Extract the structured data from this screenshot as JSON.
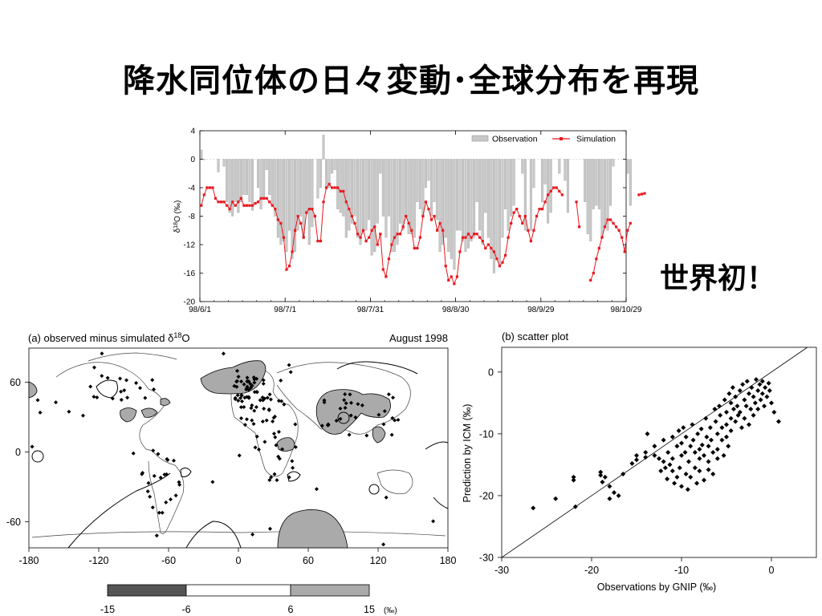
{
  "slide": {
    "title": "降水同位体の日々変動･全球分布を再現",
    "callout": "世界初！"
  },
  "colors": {
    "observation_bar": "#c8c8c8",
    "simulation_line": "#e8181e",
    "positive_shade": "#aaaaaa",
    "negative_shade": "#555555"
  },
  "chart_data": [
    {
      "type": "bar+line",
      "ylabel": "δ18O (‰)",
      "ylabel_base": "δ",
      "ylabel_sup": "18",
      "ylabel_rest": "O (‰)",
      "ylim": [
        -20,
        4
      ],
      "yticks": [
        4,
        0,
        -4,
        -8,
        -12,
        -16,
        -20
      ],
      "xlim_days": [
        0,
        150
      ],
      "xticks": [
        {
          "day": 0,
          "label": "98/6/1"
        },
        {
          "day": 30,
          "label": "98/7/1"
        },
        {
          "day": 60,
          "label": "98/7/31"
        },
        {
          "day": 90,
          "label": "98/8/30"
        },
        {
          "day": 120,
          "label": "98/9/29"
        },
        {
          "day": 150,
          "label": "98/10/29"
        }
      ],
      "legend": {
        "position": "top-right",
        "observation": "Observation",
        "simulation": "Simulation"
      },
      "series": [
        {
          "name": "Observation",
          "kind": "bar",
          "values": [
            1.3,
            0,
            null,
            null,
            null,
            null,
            -1.8,
            null,
            -1,
            -6,
            -7.5,
            -8,
            -6,
            -7.5,
            -6,
            -5,
            -5,
            -6,
            -7.2,
            null,
            -4,
            -7,
            -5.5,
            -1.5,
            -5,
            -6.5,
            -8,
            -11,
            -12,
            -11.5,
            -13,
            -10,
            -14,
            -13,
            -10,
            -8,
            -11,
            -7.5,
            -12,
            -9.5,
            null,
            -5.5,
            -4,
            3.4,
            -4,
            -4,
            -2,
            -1.5,
            -7,
            -7.5,
            -8,
            -11,
            -10,
            -9,
            -8,
            -11,
            -12,
            -10,
            -10,
            -8.5,
            -13.5,
            -13,
            -9,
            -2,
            -8,
            -11,
            -8,
            -13,
            -13,
            -12,
            -9,
            -10,
            -8,
            -10.5,
            -10.5,
            -11,
            -6,
            -7,
            -8,
            -4,
            -3,
            -8,
            -6,
            -8.5,
            -13,
            -12,
            -11,
            -13,
            -14,
            -15.5,
            -10,
            -10,
            -11.5,
            -13,
            -12.5,
            -11.5,
            -11,
            -6,
            -10,
            -12,
            -7.5,
            -11,
            -14,
            -16,
            -14,
            -15,
            -11,
            -7,
            -10,
            -8,
            -6.5,
            null,
            null,
            -2,
            -10,
            null,
            -10,
            -4,
            null,
            null,
            -6,
            -3.5,
            -9,
            -7.5,
            null,
            null,
            -2,
            null,
            -3,
            -7.5,
            null,
            null,
            null,
            null,
            null,
            -6,
            -10.5,
            -11.5,
            -7,
            -6.5,
            -7,
            -11,
            -9.5,
            -10,
            -6.5,
            -1,
            null,
            null,
            null,
            null,
            -2,
            -6.5
          ]
        },
        {
          "name": "Simulation",
          "kind": "line",
          "values": [
            -6.5,
            -5,
            -4,
            -4,
            -4,
            -5.5,
            -6,
            -6,
            -6,
            -6.5,
            -7,
            -6,
            -6.5,
            -6,
            -5.5,
            -6.5,
            -6.5,
            -6.5,
            -6.5,
            -6.2,
            -6,
            -5.5,
            -5.5,
            -5.5,
            -6,
            -6.5,
            -7,
            -8.5,
            -9,
            -11,
            -15.5,
            -15,
            -13,
            -10,
            -8,
            -9,
            -11,
            -7.5,
            -7,
            -7,
            -8,
            -11.5,
            -11.5,
            -6,
            -4,
            -3.5,
            -4,
            -4,
            -4,
            -4.5,
            -4.5,
            -6,
            -7,
            -8,
            -9,
            -10.5,
            -11,
            -10,
            -11.5,
            -11,
            -10,
            -9.5,
            -12,
            -10.5,
            -15.5,
            -16.5,
            -14,
            -12,
            -11,
            -10.5,
            -10.5,
            -9.5,
            -8,
            -9,
            -10,
            -12.5,
            -12.5,
            -11,
            -8,
            -6,
            -7,
            -8.5,
            -8,
            -10,
            -9,
            -10,
            -15,
            -17,
            -16.5,
            -17.5,
            -16.5,
            -13,
            -11,
            -11,
            -10.5,
            -11,
            -10.5,
            -10.5,
            -11,
            -11.5,
            -12.5,
            -12,
            -12.5,
            -13,
            -14,
            -15,
            -14.5,
            -13.5,
            -11,
            -9,
            -7.5,
            -7,
            -8,
            -9,
            -8,
            -10,
            -11.5,
            -10,
            -8,
            -7,
            -7,
            -6,
            -5,
            -4.5,
            -4,
            -4,
            -4.5,
            -5,
            null,
            null,
            null,
            null,
            -6,
            -9.5,
            null,
            null,
            null,
            -17,
            -16,
            -14,
            -12.5,
            -11,
            -9.5,
            -8.5,
            -8.5,
            -9,
            -9.5,
            -10,
            -11,
            -13,
            -10,
            -9,
            null,
            null,
            -5,
            -4.9,
            -4.8
          ]
        }
      ]
    },
    {
      "type": "map",
      "title": "(a) observed minus simulated δ18O",
      "title_base": "(a) observed minus simulated δ",
      "title_sup": "18",
      "title_rest": "O",
      "period": "August 1998",
      "xticks": [
        -180,
        -120,
        -60,
        0,
        60,
        120,
        180
      ],
      "yticks": [
        60,
        0,
        -60
      ],
      "colorbar": {
        "ticks": [
          -15,
          -6,
          6,
          15
        ],
        "unit": "(‰)",
        "bins": [
          {
            "from": -15,
            "to": -6,
            "color": "#555555"
          },
          {
            "from": -6,
            "to": 6,
            "color": "#ffffff"
          },
          {
            "from": 6,
            "to": 15,
            "color": "#aaaaaa"
          }
        ]
      }
    },
    {
      "type": "scatter",
      "title": "(b) scatter plot",
      "xlabel": "Observations by GNIP (‰)",
      "ylabel": "Prediction by ICM (‰)",
      "xlim": [
        -30,
        5
      ],
      "ylim": [
        -30,
        4
      ],
      "xticks": [
        -30,
        -20,
        -10,
        0
      ],
      "yticks": [
        0,
        -10,
        -20,
        -30
      ],
      "reference_line": "1:1",
      "points": [
        [
          -26.5,
          -22
        ],
        [
          -24,
          -20.5
        ],
        [
          -22,
          -17
        ],
        [
          -22,
          -17.5
        ],
        [
          -21.8,
          -21.8
        ],
        [
          -19,
          -16.2
        ],
        [
          -19,
          -16.7
        ],
        [
          -18.5,
          -17
        ],
        [
          -18.8,
          -17.8
        ],
        [
          -18,
          -18.5
        ],
        [
          -17.5,
          -19.5
        ],
        [
          -18,
          -20.5
        ],
        [
          -17,
          -20
        ],
        [
          -16.5,
          -16.5
        ],
        [
          -15.5,
          -14.8
        ],
        [
          -15,
          -13.5
        ],
        [
          -15,
          -14.2
        ],
        [
          -14,
          -13
        ],
        [
          -14,
          -13.8
        ],
        [
          -13.8,
          -10
        ],
        [
          -13,
          -12
        ],
        [
          -13,
          -13.5
        ],
        [
          -12.5,
          -14
        ],
        [
          -12.3,
          -16
        ],
        [
          -12,
          -11
        ],
        [
          -12,
          -14.5
        ],
        [
          -11.8,
          -15.5
        ],
        [
          -11.6,
          -17.3
        ],
        [
          -11.5,
          -13
        ],
        [
          -11.3,
          -15
        ],
        [
          -11,
          -10.5
        ],
        [
          -11,
          -14
        ],
        [
          -11,
          -16
        ],
        [
          -10.8,
          -18
        ],
        [
          -10.5,
          -12
        ],
        [
          -10.5,
          -17
        ],
        [
          -10.3,
          -9.5
        ],
        [
          -10.2,
          -15.5
        ],
        [
          -10,
          -11.5
        ],
        [
          -10,
          -13.5
        ],
        [
          -10,
          -18.5
        ],
        [
          -9.8,
          -9
        ],
        [
          -9.6,
          -13
        ],
        [
          -9.5,
          -16.5
        ],
        [
          -9.5,
          -10.5
        ],
        [
          -9.3,
          -19
        ],
        [
          -9.2,
          -14.5
        ],
        [
          -9,
          -12
        ],
        [
          -9,
          -17
        ],
        [
          -8.8,
          -8.5
        ],
        [
          -8.7,
          -11
        ],
        [
          -8.5,
          -15.5
        ],
        [
          -8.5,
          -13
        ],
        [
          -8.3,
          -18
        ],
        [
          -8.2,
          -10
        ],
        [
          -8,
          -12.5
        ],
        [
          -8,
          -14
        ],
        [
          -8,
          -16
        ],
        [
          -7.8,
          -9.2
        ],
        [
          -7.7,
          -11.8
        ],
        [
          -7.5,
          -13.5
        ],
        [
          -7.5,
          -17.5
        ],
        [
          -7.3,
          -7.5
        ],
        [
          -7.2,
          -10.5
        ],
        [
          -7,
          -12
        ],
        [
          -7,
          -14.5
        ],
        [
          -7,
          -15.8
        ],
        [
          -6.8,
          -9
        ],
        [
          -6.7,
          -11
        ],
        [
          -6.5,
          -13
        ],
        [
          -6.5,
          -16.5
        ],
        [
          -6.3,
          -6
        ],
        [
          -6.2,
          -8
        ],
        [
          -6,
          -10
        ],
        [
          -6,
          -12.5
        ],
        [
          -6,
          -14
        ],
        [
          -5.8,
          -5.5
        ],
        [
          -5.7,
          -7
        ],
        [
          -5.5,
          -9
        ],
        [
          -5.5,
          -11
        ],
        [
          -5.3,
          -13.5
        ],
        [
          -5.2,
          -4.5
        ],
        [
          -5,
          -6.5
        ],
        [
          -5,
          -8.5
        ],
        [
          -5,
          -10.5
        ],
        [
          -4.8,
          -12
        ],
        [
          -4.7,
          -3.5
        ],
        [
          -4.5,
          -5
        ],
        [
          -4.5,
          -7.5
        ],
        [
          -4.5,
          -9.5
        ],
        [
          -4.3,
          -2.5
        ],
        [
          -4.2,
          -6
        ],
        [
          -4,
          -4
        ],
        [
          -4,
          -8
        ],
        [
          -3.8,
          -5.5
        ],
        [
          -3.7,
          -7
        ],
        [
          -3.5,
          -3
        ],
        [
          -3.5,
          -6.5
        ],
        [
          -3.3,
          -9
        ],
        [
          -3.2,
          -2
        ],
        [
          -3,
          -4.5
        ],
        [
          -3,
          -7.5
        ],
        [
          -2.8,
          -5.5
        ],
        [
          -2.7,
          -1.5
        ],
        [
          -2.5,
          -3.5
        ],
        [
          -2.5,
          -8.5
        ],
        [
          -2.3,
          -6
        ],
        [
          -2.2,
          -2.5
        ],
        [
          -2,
          -4
        ],
        [
          -2,
          -7
        ],
        [
          -1.8,
          -5
        ],
        [
          -1.7,
          -1.2
        ],
        [
          -1.5,
          -3
        ],
        [
          -1.5,
          -6
        ],
        [
          -1.3,
          -2
        ],
        [
          -1.2,
          -4.5
        ],
        [
          -1,
          -1.5
        ],
        [
          -1,
          -3.5
        ],
        [
          -0.8,
          -5.5
        ],
        [
          -0.7,
          -2.5
        ],
        [
          -0.5,
          -4
        ],
        [
          -0.3,
          -1.8
        ],
        [
          -0.2,
          -3
        ],
        [
          0,
          -5
        ],
        [
          0.3,
          -6.5
        ],
        [
          0.8,
          -8
        ]
      ]
    }
  ]
}
